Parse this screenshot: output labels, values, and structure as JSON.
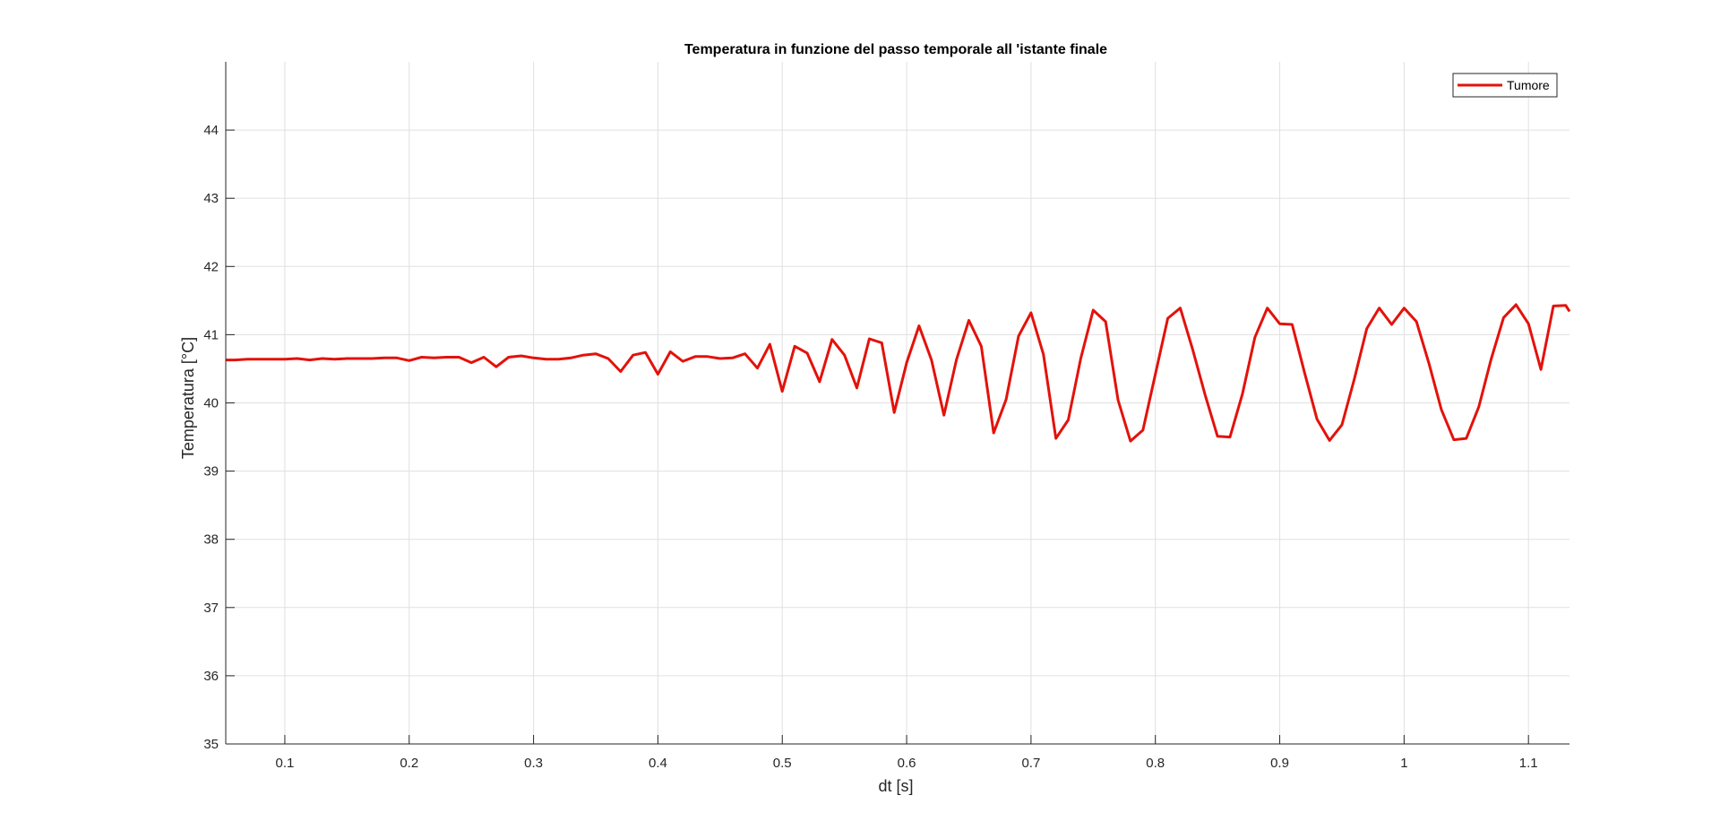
{
  "chart_data": {
    "type": "line",
    "title": "Temperatura in funzione del passo temporale all 'istante finale",
    "xlabel": "dt [s]",
    "ylabel": "Temperatura [°C]",
    "xlim": [
      0.0525,
      1.133
    ],
    "ylim": [
      35,
      45
    ],
    "xticks": [
      0.1,
      0.2,
      0.3,
      0.4,
      0.5,
      0.6,
      0.7,
      0.8,
      0.9,
      1,
      1.1
    ],
    "yticks": [
      35,
      36,
      37,
      38,
      39,
      40,
      41,
      42,
      43,
      44
    ],
    "grid": true,
    "legend": "top-right",
    "colors": {
      "series": "#e3120b",
      "grid": "#e0e0e0",
      "axis": "#262626"
    },
    "series": [
      {
        "name": "Tumore",
        "x": [
          0.0525,
          0.06,
          0.07,
          0.08,
          0.09,
          0.1,
          0.11,
          0.12,
          0.13,
          0.14,
          0.15,
          0.16,
          0.17,
          0.18,
          0.19,
          0.2,
          0.21,
          0.22,
          0.23,
          0.24,
          0.25,
          0.26,
          0.27,
          0.28,
          0.29,
          0.3,
          0.31,
          0.32,
          0.33,
          0.34,
          0.35,
          0.36,
          0.37,
          0.38,
          0.39,
          0.4,
          0.41,
          0.42,
          0.43,
          0.44,
          0.45,
          0.46,
          0.47,
          0.48,
          0.49,
          0.5,
          0.51,
          0.52,
          0.53,
          0.54,
          0.55,
          0.56,
          0.57,
          0.58,
          0.59,
          0.6,
          0.61,
          0.62,
          0.63,
          0.64,
          0.65,
          0.66,
          0.67,
          0.68,
          0.69,
          0.7,
          0.71,
          0.72,
          0.73,
          0.74,
          0.75,
          0.76,
          0.77,
          0.78,
          0.79,
          0.8,
          0.81,
          0.82,
          0.83,
          0.84,
          0.85,
          0.86,
          0.87,
          0.88,
          0.89,
          0.9,
          0.91,
          0.92,
          0.93,
          0.94,
          0.95,
          0.96,
          0.97,
          0.98,
          0.99,
          1.0,
          1.01,
          1.02,
          1.03,
          1.04,
          1.05,
          1.06,
          1.07,
          1.08,
          1.09,
          1.1,
          1.11,
          1.12,
          1.13,
          1.133
        ],
        "y": [
          40.63,
          40.63,
          40.64,
          40.64,
          40.64,
          40.64,
          40.65,
          40.63,
          40.65,
          40.64,
          40.65,
          40.65,
          40.65,
          40.66,
          40.66,
          40.62,
          40.67,
          40.66,
          40.67,
          40.67,
          40.59,
          40.67,
          40.53,
          40.67,
          40.69,
          40.66,
          40.64,
          40.64,
          40.66,
          40.7,
          40.72,
          40.65,
          40.46,
          40.7,
          40.74,
          40.42,
          40.75,
          40.61,
          40.68,
          40.68,
          40.65,
          40.66,
          40.72,
          40.51,
          40.86,
          40.17,
          40.83,
          40.73,
          40.31,
          40.93,
          40.7,
          40.22,
          40.94,
          40.88,
          39.86,
          40.59,
          41.13,
          40.63,
          39.82,
          40.63,
          41.21,
          40.83,
          39.56,
          40.05,
          40.98,
          41.32,
          40.71,
          39.48,
          39.75,
          40.65,
          41.36,
          41.19,
          40.04,
          39.44,
          39.6,
          40.42,
          41.24,
          41.39,
          40.78,
          40.12,
          39.51,
          39.5,
          40.13,
          40.96,
          41.39,
          41.16,
          41.15,
          40.44,
          39.76,
          39.45,
          39.68,
          40.35,
          41.09,
          41.39,
          41.15,
          41.39,
          41.19,
          40.58,
          39.9,
          39.46,
          39.48,
          39.94,
          40.64,
          41.25,
          41.44,
          41.16,
          40.49,
          41.42,
          41.43,
          41.34
        ]
      }
    ]
  }
}
